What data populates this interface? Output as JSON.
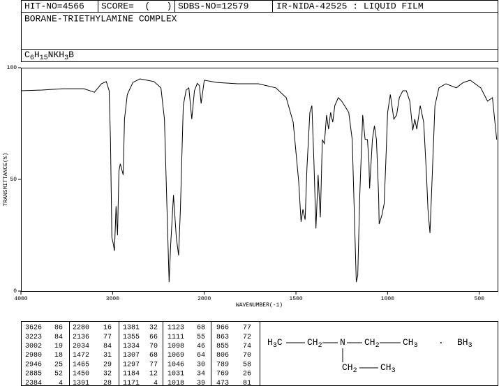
{
  "header": {
    "hit": "HIT-NO=4566",
    "score": "SCORE=  (   )",
    "sdbs": "SDBS-NO=12579",
    "method": "IR-NIDA-42525 : LIQUID FILM",
    "name": "BORANE-TRIETHYLAMINE COMPLEX",
    "formula": [
      "C",
      "6",
      "H",
      "15",
      "NKH",
      "3",
      "B"
    ]
  },
  "chart_data": {
    "type": "line",
    "xlabel": "WAVENUMBER(-1)",
    "ylabel": "TRANSMITTANCE(%)",
    "color": "#000000",
    "xlim": [
      4000,
      400
    ],
    "xticks": [
      4000,
      3000,
      2000,
      1500,
      1000,
      500
    ],
    "ylim": [
      0,
      100
    ],
    "yticks": [
      0,
      50,
      100
    ],
    "x": [
      4000,
      3771,
      3542,
      3313,
      3198,
      3122,
      3069,
      3038,
      3023,
      3008,
      2992,
      2980,
      2962,
      2946,
      2931,
      2916,
      2885,
      2870,
      2840,
      2779,
      2702,
      2626,
      2550,
      2473,
      2435,
      2384,
      2366,
      2336,
      2305,
      2280,
      2260,
      2229,
      2198,
      2168,
      2136,
      2107,
      2076,
      2053,
      2034,
      2000,
      1932,
      1818,
      1705,
      1610,
      1553,
      1515,
      1485,
      1472,
      1462,
      1450,
      1440,
      1424,
      1413,
      1402,
      1391,
      1379,
      1367,
      1356,
      1345,
      1333,
      1322,
      1311,
      1299,
      1288,
      1269,
      1250,
      1212,
      1193,
      1171,
      1163,
      1152,
      1136,
      1123,
      1110,
      1102,
      1098,
      1083,
      1072,
      1061,
      1049,
      1046,
      1031,
      1019,
      1011,
      1000,
      985,
      966,
      951,
      936,
      917,
      898,
      879,
      863,
      852,
      841,
      822,
      803,
      788,
      780,
      769,
      758,
      742,
      720,
      682,
      625,
      587,
      549,
      523,
      492,
      455,
      428,
      405
    ],
    "values": [
      89.7,
      90,
      90.6,
      90.6,
      89,
      92.8,
      93.8,
      89.7,
      67.8,
      24,
      21,
      18,
      38,
      25,
      53.8,
      57,
      52,
      77,
      88,
      93.4,
      95,
      94.4,
      93.8,
      91,
      77,
      4,
      21,
      43,
      24,
      16,
      36.6,
      83,
      90,
      91,
      77,
      89.7,
      93,
      92,
      84,
      94.4,
      93.4,
      92.8,
      92.8,
      91,
      86.6,
      75.6,
      49,
      31,
      36.6,
      32,
      55,
      80,
      83,
      58,
      28,
      52,
      33,
      67.8,
      66,
      78.8,
      72.5,
      80,
      75.6,
      83,
      86.6,
      85,
      80,
      67.8,
      4,
      6.9,
      42.8,
      78.8,
      68,
      67.8,
      58,
      46,
      67.8,
      74,
      67.8,
      42.8,
      30,
      34,
      39,
      55,
      80,
      88,
      77,
      78.8,
      86.6,
      89.7,
      89.7,
      85,
      72,
      77,
      72.5,
      83,
      75.6,
      52,
      36.6,
      26,
      49,
      83,
      91,
      92.8,
      91,
      93.4,
      94.4,
      92.8,
      91,
      85,
      86.6,
      67.8
    ]
  },
  "peak_table": [
    [
      3626,
      86
    ],
    [
      3223,
      84
    ],
    [
      3002,
      19
    ],
    [
      2980,
      18
    ],
    [
      2946,
      25
    ],
    [
      2885,
      52
    ],
    [
      2384,
      4
    ],
    [
      2280,
      16
    ],
    [
      2136,
      77
    ],
    [
      2034,
      84
    ],
    [
      1472,
      31
    ],
    [
      1465,
      29
    ],
    [
      1450,
      32
    ],
    [
      1391,
      28
    ],
    [
      1381,
      32
    ],
    [
      1355,
      66
    ],
    [
      1334,
      70
    ],
    [
      1307,
      68
    ],
    [
      1297,
      77
    ],
    [
      1184,
      12
    ],
    [
      1171,
      4
    ],
    [
      1123,
      68
    ],
    [
      1111,
      55
    ],
    [
      1098,
      46
    ],
    [
      1069,
      64
    ],
    [
      1046,
      30
    ],
    [
      1031,
      34
    ],
    [
      1018,
      39
    ],
    [
      966,
      77
    ],
    [
      863,
      72
    ],
    [
      855,
      74
    ],
    [
      806,
      70
    ],
    [
      789,
      58
    ],
    [
      769,
      26
    ],
    [
      473,
      81
    ]
  ],
  "structure": {
    "groups": [
      [
        "H",
        "3",
        "C"
      ],
      [
        "CH",
        "2"
      ],
      [
        "N"
      ],
      [
        "CH",
        "2"
      ],
      [
        "CH",
        "3"
      ],
      [
        "BH",
        "3"
      ],
      [
        "CH",
        "2"
      ],
      [
        "CH",
        "3"
      ]
    ],
    "dot": "·"
  }
}
